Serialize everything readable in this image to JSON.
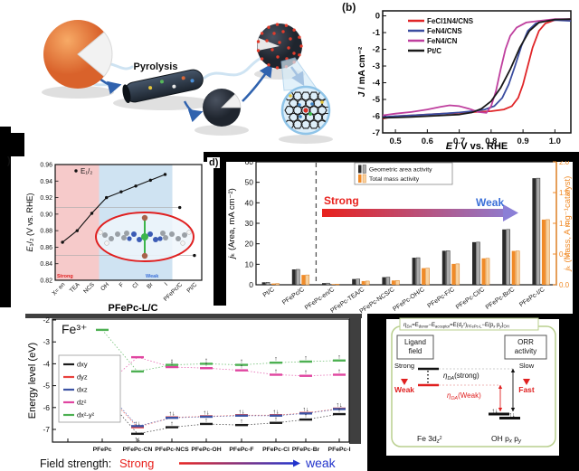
{
  "panel_labels": {
    "b": "(b)",
    "c": ")",
    "d": "d)"
  },
  "schematic": {
    "pyrolysis_label": "Pyrolysis"
  },
  "chart_data": [
    {
      "id": "lsv",
      "type": "line",
      "xlabel": "E / V vs. RHE",
      "ylabel": "J / mA cm⁻²",
      "xlim": [
        0.46,
        1.05
      ],
      "ylim": [
        -7,
        0.3
      ],
      "xticks": [
        0.5,
        0.6,
        0.7,
        0.8,
        0.9,
        1.0
      ],
      "yticks": [
        0,
        -1,
        -2,
        -3,
        -4,
        -5,
        -6,
        -7
      ],
      "legend_position": "top-left-inside",
      "series": [
        {
          "name": "FeCl1N4/CNS",
          "color": "#e02528",
          "x": [
            0.46,
            0.5,
            0.55,
            0.6,
            0.65,
            0.7,
            0.75,
            0.8,
            0.84,
            0.865,
            0.885,
            0.9,
            0.915,
            0.93,
            0.95,
            0.97,
            1.0,
            1.05
          ],
          "y": [
            -6.15,
            -6.0,
            -5.95,
            -5.9,
            -5.85,
            -5.8,
            -5.75,
            -5.7,
            -5.6,
            -5.4,
            -4.9,
            -4.1,
            -3.0,
            -1.9,
            -0.9,
            -0.45,
            -0.25,
            -0.2
          ]
        },
        {
          "name": "FeN4/CNS",
          "color": "#3b4da0",
          "x": [
            0.46,
            0.5,
            0.55,
            0.6,
            0.65,
            0.7,
            0.75,
            0.78,
            0.81,
            0.835,
            0.855,
            0.875,
            0.895,
            0.915,
            0.94,
            0.97,
            1.0,
            1.05
          ],
          "y": [
            -6.05,
            -6.0,
            -5.95,
            -5.9,
            -5.85,
            -5.78,
            -5.68,
            -5.6,
            -5.4,
            -4.9,
            -4.1,
            -3.0,
            -1.8,
            -0.9,
            -0.45,
            -0.3,
            -0.25,
            -0.3
          ]
        },
        {
          "name": "FeN4/CN",
          "color": "#bf3f9e",
          "x": [
            0.46,
            0.5,
            0.55,
            0.6,
            0.64,
            0.67,
            0.7,
            0.73,
            0.76,
            0.785,
            0.8,
            0.815,
            0.83,
            0.845,
            0.86,
            0.88,
            0.91,
            0.95,
            1.0,
            1.05
          ],
          "y": [
            -5.95,
            -5.85,
            -5.75,
            -5.6,
            -5.45,
            -5.35,
            -5.4,
            -5.55,
            -5.75,
            -5.8,
            -5.4,
            -4.5,
            -3.2,
            -2.0,
            -1.2,
            -0.7,
            -0.4,
            -0.3,
            -0.2,
            -0.2
          ]
        },
        {
          "name": "Pt/C",
          "color": "#1a1a1a",
          "x": [
            0.46,
            0.5,
            0.55,
            0.6,
            0.65,
            0.7,
            0.74,
            0.77,
            0.8,
            0.83,
            0.86,
            0.89,
            0.92,
            0.95,
            1.0,
            1.05
          ],
          "y": [
            -6.1,
            -6.08,
            -6.05,
            -6.0,
            -5.95,
            -5.9,
            -5.78,
            -5.55,
            -5.1,
            -4.3,
            -3.2,
            -1.9,
            -0.9,
            -0.4,
            -0.22,
            -0.2
          ]
        }
      ]
    },
    {
      "id": "halfwave",
      "type": "scatter",
      "xlabel": "PFePc-L/C",
      "ylabel": "E₁/₂ (V vs. RHE)",
      "legend": "E₁/₂",
      "categories": [
        "X= en",
        "TEA",
        "NCS",
        "OH",
        "F",
        "Cl",
        "Br",
        "I",
        "PFePc/C",
        "Pt/C"
      ],
      "values": [
        0.866,
        0.88,
        0.901,
        0.92,
        0.927,
        0.934,
        0.941,
        0.948,
        0.908,
        0.85
      ],
      "connected_count": 8,
      "ylim": [
        0.82,
        0.96
      ],
      "yticks": [
        0.82,
        0.84,
        0.86,
        0.88,
        0.9,
        0.92,
        0.94,
        0.96
      ],
      "ref_values": [
        0.908,
        0.85
      ],
      "regions": [
        {
          "label": "Strong",
          "fill": "#f6caca",
          "text_color": "#e02020"
        },
        {
          "label": "Weak",
          "fill": "#cfe3f2",
          "text_color": "#3a6fd8"
        }
      ]
    },
    {
      "id": "kinetic",
      "type": "bar",
      "ylabel_left": "jₖ (Area, mA cm⁻²)",
      "ylabel_right": "jₖ (Mass, A mg⁻¹catalyst)",
      "ylim_left": [
        0,
        60
      ],
      "ylim_right": [
        0,
        2.0
      ],
      "yticks_left": [
        0,
        10,
        20,
        30,
        40,
        50,
        60
      ],
      "yticks_right": [
        "0.0",
        "0.5",
        "1.0",
        "1.5",
        "2.0"
      ],
      "categories": [
        "Pt/C",
        "PFePc/C",
        "PFePc-en/C",
        "PFePc-TEA/C",
        "PFePc-NCS/C",
        "PFePc-OH/C",
        "PFePc-F/C",
        "PFePc-Cl/C",
        "PFePc-Br/C",
        "PFePc-I/C"
      ],
      "series": [
        {
          "name": "Geometric area activity",
          "axis": "left",
          "colors": [
            "#2b2b2b",
            "#ababab"
          ],
          "values": [
            1.2,
            7.5,
            0.8,
            2.8,
            3.7,
            13.2,
            16.6,
            20.8,
            27.0,
            52.0
          ]
        },
        {
          "name": "Total mass activity",
          "axis": "right",
          "colors": [
            "#f08b28",
            "#f8d2a0"
          ],
          "values": [
            0.02,
            0.16,
            0.01,
            0.06,
            0.07,
            0.27,
            0.34,
            0.43,
            0.55,
            1.06
          ]
        }
      ],
      "divider_after_index": 1,
      "arrow": {
        "strong": "Strong",
        "weak": "Weak",
        "strong_color": "#e8211d",
        "weak_color": "#3a6fd8"
      },
      "accent_right": "#f08b28"
    },
    {
      "id": "orbitals",
      "type": "line",
      "title": "Fe³⁺",
      "ylabel": "Energy level (eV)",
      "ylim": [
        -7.6,
        -1.9
      ],
      "yticks": [
        -2,
        -3,
        -4,
        -5,
        -6,
        -7
      ],
      "categories": [
        "PFePc",
        "PFePc-CN",
        "PFePc-NCS",
        "PFePc-OH",
        "PFePc-F",
        "PFePc-Cl",
        "PFePc-Br",
        "PFePc-I"
      ],
      "series": [
        {
          "name": "dxy",
          "color": "#1a1a1a",
          "values": [
            -5.35,
            -7.2,
            -6.9,
            -6.75,
            -6.8,
            -6.7,
            -6.55,
            -6.3
          ]
        },
        {
          "name": "dyz",
          "color": "#e8413c",
          "values": [
            -5.15,
            -6.9,
            -6.45,
            -6.4,
            -6.35,
            -6.35,
            -6.25,
            -6.05
          ]
        },
        {
          "name": "dxz",
          "color": "#3c53a4",
          "values": [
            -5.05,
            -6.85,
            -6.47,
            -6.42,
            -6.37,
            -6.37,
            -6.27,
            -6.07
          ]
        },
        {
          "name": "dz²",
          "color": "#e045a0",
          "values": [
            -5.1,
            -3.7,
            -4.15,
            -4.2,
            -4.3,
            -4.5,
            -4.55,
            -4.5
          ]
        },
        {
          "name": "dx²-y²",
          "color": "#4db052",
          "values": [
            -2.45,
            -4.35,
            -4.05,
            -4.0,
            -4.05,
            -3.95,
            -3.9,
            -3.85
          ]
        }
      ],
      "electrons": [
        {
          "c": 0,
          "s": 1,
          "g": "↑↓",
          "a": true
        },
        {
          "c": 0,
          "s": 0,
          "g": "↑↓",
          "a": false
        },
        {
          "c": 0,
          "s": 3,
          "g": "↑",
          "a": true
        },
        {
          "c": 1,
          "s": 1,
          "g": "↑↓",
          "a": true
        },
        {
          "c": 1,
          "s": 0,
          "g": "↑↓",
          "a": false
        },
        {
          "c": 2,
          "s": 1,
          "g": "↑↓",
          "a": true
        },
        {
          "c": 2,
          "s": 0,
          "g": "↑",
          "a": true
        },
        {
          "c": 2,
          "s": 4,
          "g": "↑",
          "a": true
        },
        {
          "c": 2,
          "s": 3,
          "g": "↑",
          "a": true
        },
        {
          "c": 3,
          "s": 1,
          "g": "↑↓",
          "a": true
        },
        {
          "c": 3,
          "s": 0,
          "g": "↑",
          "a": true
        },
        {
          "c": 3,
          "s": 4,
          "g": "↑",
          "a": true
        },
        {
          "c": 3,
          "s": 3,
          "g": "↑",
          "a": true
        },
        {
          "c": 4,
          "s": 1,
          "g": "↑↓",
          "a": true
        },
        {
          "c": 4,
          "s": 0,
          "g": "↑",
          "a": true
        },
        {
          "c": 4,
          "s": 4,
          "g": "↑",
          "a": true
        },
        {
          "c": 4,
          "s": 3,
          "g": "↑",
          "a": true
        },
        {
          "c": 5,
          "s": 1,
          "g": "↑↓",
          "a": true
        },
        {
          "c": 5,
          "s": 0,
          "g": "↑",
          "a": true
        },
        {
          "c": 5,
          "s": 4,
          "g": "↑",
          "a": true
        },
        {
          "c": 5,
          "s": 3,
          "g": "↑",
          "a": true
        },
        {
          "c": 6,
          "s": 1,
          "g": "↑↓",
          "a": true
        },
        {
          "c": 6,
          "s": 0,
          "g": "↑",
          "a": true
        },
        {
          "c": 6,
          "s": 4,
          "g": "↑",
          "a": true
        },
        {
          "c": 6,
          "s": 3,
          "g": "↑",
          "a": true
        },
        {
          "c": 7,
          "s": 1,
          "g": "↑↓",
          "a": true
        },
        {
          "c": 7,
          "s": 0,
          "g": "↑",
          "a": true
        },
        {
          "c": 7,
          "s": 4,
          "g": "↑",
          "a": true
        },
        {
          "c": 7,
          "s": 3,
          "g": "↑",
          "a": true
        }
      ],
      "footer": {
        "label": "Field strength:",
        "strong": "Strong",
        "weak": "weak",
        "strong_color": "#e8211d",
        "weak_color": "#2233cc"
      }
    }
  ],
  "mechanism": {
    "ligand_line1": "Ligand",
    "ligand_line2": "field",
    "orr_line1": "ORR",
    "orr_line2": "activity",
    "strong": "Strong",
    "weak": "Weak",
    "slow": "Slow",
    "fast": "Fast",
    "electron_pair": "↑↓",
    "accent_red": "#e02020",
    "border_green": "#b9cf8e",
    "formula_parts": [
      {
        "t": "η",
        "s": 6.2,
        "v": 0,
        "i": true
      },
      {
        "t": "DA",
        "s": 4.2,
        "v": 1.6,
        "i": true
      },
      {
        "t": "=E",
        "s": 6,
        "v": 0
      },
      {
        "t": "donor",
        "s": 4.2,
        "v": 1.6
      },
      {
        "t": "−E",
        "s": 6,
        "v": 0
      },
      {
        "t": "acceptor",
        "s": 4.2,
        "v": 1.6
      },
      {
        "t": "=E(d",
        "s": 6,
        "v": 0
      },
      {
        "t": "z",
        "s": 4.2,
        "v": 1.4,
        "i": true
      },
      {
        "t": "2",
        "s": 3.8,
        "v": -1.6
      },
      {
        "t": ")",
        "s": 6,
        "v": 0
      },
      {
        "t": "PFePc-L",
        "s": 4.2,
        "v": 1.6
      },
      {
        "t": "−E(p",
        "s": 6,
        "v": 0
      },
      {
        "t": "x",
        "s": 4.2,
        "v": 1.4,
        "i": true
      },
      {
        "t": " p",
        "s": 6,
        "v": 0
      },
      {
        "t": "y",
        "s": 4.2,
        "v": 1.4,
        "i": true
      },
      {
        "t": ")",
        "s": 6,
        "v": 0
      },
      {
        "t": "OH",
        "s": 4.2,
        "v": 1.6
      }
    ],
    "eta_strong_parts": [
      {
        "t": "η",
        "s": 8,
        "v": 0,
        "i": true
      },
      {
        "t": "DA",
        "s": 5.5,
        "v": 1.8,
        "i": true
      },
      {
        "t": "(strong)",
        "s": 8,
        "v": 0
      }
    ],
    "eta_weak_parts": [
      {
        "t": "η",
        "s": 8,
        "v": 0,
        "i": true
      },
      {
        "t": "DA",
        "s": 5.5,
        "v": 1.8,
        "i": true
      },
      {
        "t": "(Weak)",
        "s": 8,
        "v": 0
      }
    ],
    "fe_parts": [
      {
        "t": "Fe 3d",
        "s": 8.5,
        "v": 0
      },
      {
        "t": "z",
        "s": 6,
        "v": 1.6,
        "i": true
      },
      {
        "t": "2",
        "s": 5,
        "v": -1.8
      }
    ],
    "oh_parts": [
      {
        "t": "OH p",
        "s": 8.5,
        "v": 0
      },
      {
        "t": "x",
        "s": 6,
        "v": 1.6,
        "i": true
      },
      {
        "t": " p",
        "s": 8.5,
        "v": 0
      },
      {
        "t": "y",
        "s": 6,
        "v": 1.6,
        "i": true
      }
    ]
  }
}
